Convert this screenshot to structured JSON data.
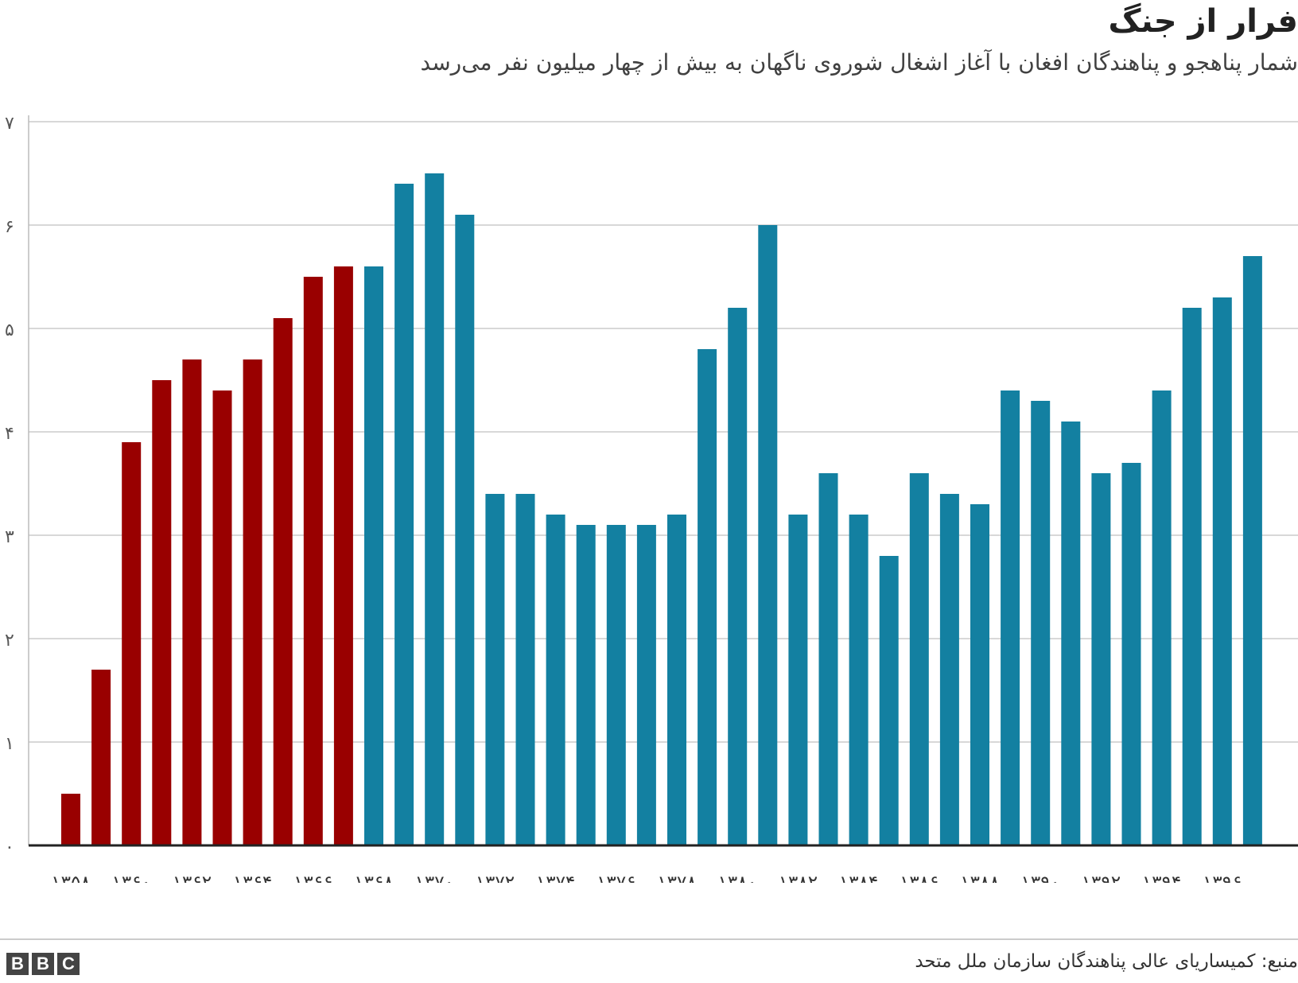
{
  "title": "فرار از جنگ",
  "subtitle": "شمار پناهجو و پناهندگان افغان با آغاز اشغال شوروی ناگهان به بیش از چهار میلیون نفر می‌رسد",
  "source": "منبع: کمیساریای عالی پناهندگان سازمان ملل متحد",
  "logo": {
    "letters": [
      "B",
      "B",
      "C"
    ]
  },
  "colors": {
    "red": "#990000",
    "blue": "#1380A1",
    "grid": "#cccccc",
    "axis": "#222222"
  },
  "chart_data": {
    "type": "bar",
    "categories": [
      "1358",
      "1359",
      "1360",
      "1361",
      "1362",
      "1363",
      "1364",
      "1365",
      "1366",
      "1367",
      "1368",
      "1369",
      "1370",
      "1371",
      "1372",
      "1373",
      "1374",
      "1375",
      "1376",
      "1377",
      "1378",
      "1379",
      "1380",
      "1381",
      "1382",
      "1383",
      "1384",
      "1385",
      "1386",
      "1387",
      "1388",
      "1389",
      "1390",
      "1391",
      "1392",
      "1393",
      "1394",
      "1395",
      "1396",
      "1397"
    ],
    "values": [
      0.5,
      1.7,
      3.9,
      4.5,
      4.7,
      4.4,
      4.7,
      5.1,
      5.5,
      5.6,
      5.6,
      6.4,
      6.5,
      6.1,
      3.4,
      3.4,
      3.2,
      3.1,
      3.1,
      3.1,
      3.2,
      4.8,
      5.2,
      6.0,
      3.2,
      3.6,
      3.2,
      2.8,
      3.6,
      3.4,
      3.3,
      4.4,
      4.3,
      4.1,
      3.6,
      3.7,
      4.4,
      5.2,
      5.3,
      5.7
    ],
    "bar_colors": [
      "red",
      "red",
      "red",
      "red",
      "red",
      "red",
      "red",
      "red",
      "red",
      "red",
      "blue",
      "blue",
      "blue",
      "blue",
      "blue",
      "blue",
      "blue",
      "blue",
      "blue",
      "blue",
      "blue",
      "blue",
      "blue",
      "blue",
      "blue",
      "blue",
      "blue",
      "blue",
      "blue",
      "blue",
      "blue",
      "blue",
      "blue",
      "blue",
      "blue",
      "blue",
      "blue",
      "blue",
      "blue",
      "blue"
    ],
    "x_tick_labels": [
      "۱۳۵۸",
      "۱۳۶۰",
      "۱۳۶۲",
      "۱۳۶۴",
      "۱۳۶۶",
      "۱۳۶۸",
      "۱۳۷۰",
      "۱۳۷۲",
      "۱۳۷۴",
      "۱۳۷۶",
      "۱۳۷۸",
      "۱۳۸۰",
      "۱۳۸۲",
      "۱۳۸۴",
      "۱۳۸۶",
      "۱۳۸۸",
      "۱۳۹۰",
      "۱۳۹۲",
      "۱۳۹۴",
      "۱۳۹۶"
    ],
    "y_ticks": [
      0,
      1,
      2,
      3,
      4,
      5,
      6,
      7
    ],
    "y_tick_labels": [
      "۰",
      "۱",
      "۲",
      "۳",
      "۴",
      "۵",
      "۶",
      "۷"
    ],
    "ylim": [
      0,
      7
    ],
    "grid": true,
    "xlabel": "",
    "ylabel": ""
  }
}
